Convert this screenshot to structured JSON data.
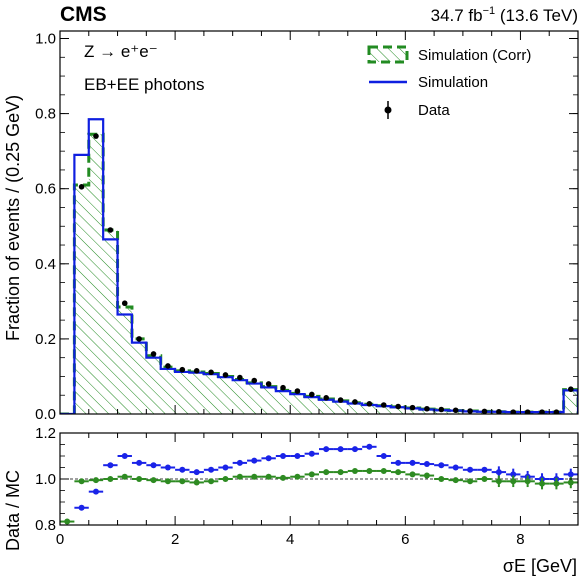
{
  "header": {
    "experiment": "CMS",
    "lumi_main": "34.7 fb",
    "lumi_sup": "−1",
    "lumi_tail": " (13.6 TeV)"
  },
  "annotations": {
    "process": "Z → e⁺e⁻",
    "region": "EB+EE photons"
  },
  "legend": {
    "corr": "Simulation (Corr)",
    "sim": "Simulation",
    "data": "Data"
  },
  "colors": {
    "corr": "#228b22",
    "sim": "#0f1fe0",
    "data": "#000000",
    "ratio_sim": "#1a23e8",
    "ratio_corr": "#2e8b22"
  },
  "chart_data": [
    {
      "type": "histogram",
      "ylabel": "Fraction of events / (0.25 GeV)",
      "xlim": [
        0,
        9
      ],
      "ylim": [
        0,
        1.02
      ],
      "yticks": [
        0.0,
        0.2,
        0.4,
        0.6,
        0.8,
        1.0
      ],
      "ytick_labels": [
        "0.0",
        "0.2",
        "0.4",
        "0.6",
        "0.8",
        "1.0"
      ],
      "bin_edges": [
        0.0,
        0.25,
        0.5,
        0.75,
        1.0,
        1.25,
        1.5,
        1.75,
        2.0,
        2.25,
        2.5,
        2.75,
        3.0,
        3.25,
        3.5,
        3.75,
        4.0,
        4.25,
        4.5,
        4.75,
        5.0,
        5.25,
        5.5,
        5.75,
        6.0,
        6.25,
        6.5,
        6.75,
        7.0,
        7.25,
        7.5,
        7.75,
        8.0,
        8.25,
        8.5,
        8.75,
        9.0
      ],
      "series": [
        {
          "name": "Simulation (Corr)",
          "style": "hatched",
          "values": [
            0.0,
            0.61,
            0.745,
            0.49,
            0.285,
            0.2,
            0.155,
            0.125,
            0.115,
            0.112,
            0.108,
            0.1,
            0.092,
            0.083,
            0.073,
            0.063,
            0.055,
            0.047,
            0.04,
            0.035,
            0.03,
            0.026,
            0.022,
            0.019,
            0.016,
            0.013,
            0.011,
            0.009,
            0.008,
            0.007,
            0.006,
            0.005,
            0.005,
            0.005,
            0.005,
            0.065
          ]
        },
        {
          "name": "Simulation",
          "style": "step",
          "values": [
            0.0,
            0.69,
            0.785,
            0.465,
            0.265,
            0.19,
            0.15,
            0.12,
            0.112,
            0.11,
            0.106,
            0.098,
            0.09,
            0.081,
            0.071,
            0.061,
            0.053,
            0.045,
            0.038,
            0.033,
            0.028,
            0.024,
            0.021,
            0.018,
            0.015,
            0.012,
            0.01,
            0.009,
            0.007,
            0.006,
            0.006,
            0.005,
            0.005,
            0.005,
            0.005,
            0.063
          ]
        },
        {
          "name": "Data",
          "style": "points",
          "values": [
            null,
            0.605,
            0.74,
            0.49,
            0.295,
            0.2,
            0.16,
            0.128,
            0.118,
            0.115,
            0.111,
            0.104,
            0.097,
            0.089,
            0.08,
            0.07,
            0.061,
            0.052,
            0.043,
            0.037,
            0.032,
            0.027,
            0.024,
            0.02,
            0.017,
            0.014,
            0.012,
            0.01,
            0.008,
            0.007,
            0.006,
            0.005,
            0.005,
            0.005,
            0.005,
            0.066
          ]
        }
      ]
    },
    {
      "type": "scatter",
      "xlabel": "σE [GeV]",
      "ylabel": "Data / MC",
      "xlim": [
        0,
        9
      ],
      "ylim": [
        0.8,
        1.2
      ],
      "xticks": [
        0,
        2,
        4,
        6,
        8
      ],
      "xtick_labels": [
        "0",
        "2",
        "4",
        "6",
        "8"
      ],
      "yticks": [
        0.8,
        1.0,
        1.2
      ],
      "ytick_labels": [
        "0.8",
        "1.0",
        "1.2"
      ],
      "reference_line": 1.0,
      "x": [
        0.125,
        0.375,
        0.625,
        0.875,
        1.125,
        1.375,
        1.625,
        1.875,
        2.125,
        2.375,
        2.625,
        2.875,
        3.125,
        3.375,
        3.625,
        3.875,
        4.125,
        4.375,
        4.625,
        4.875,
        5.125,
        5.375,
        5.625,
        5.875,
        6.125,
        6.375,
        6.625,
        6.875,
        7.125,
        7.375,
        7.625,
        7.875,
        8.125,
        8.375,
        8.625,
        8.875
      ],
      "series": [
        {
          "name": "Simulation",
          "values": [
            null,
            0.875,
            0.945,
            1.06,
            1.1,
            1.07,
            1.06,
            1.05,
            1.04,
            1.03,
            1.04,
            1.05,
            1.07,
            1.08,
            1.09,
            1.1,
            1.1,
            1.11,
            1.13,
            1.13,
            1.13,
            1.14,
            1.1,
            1.07,
            1.07,
            1.065,
            1.06,
            1.05,
            1.04,
            1.04,
            1.03,
            1.02,
            1.01,
            1.0,
            1.0,
            1.02
          ]
        },
        {
          "name": "Simulation (Corr)",
          "values": [
            0.815,
            0.99,
            0.995,
            1.0,
            1.01,
            1.0,
            0.995,
            0.99,
            0.99,
            0.985,
            0.99,
            1.0,
            1.01,
            1.01,
            1.01,
            1.005,
            1.01,
            1.02,
            1.03,
            1.03,
            1.035,
            1.035,
            1.035,
            1.03,
            1.02,
            1.015,
            1.0,
            0.995,
            0.99,
            1.0,
            0.99,
            0.99,
            0.99,
            0.98,
            0.98,
            0.985
          ]
        }
      ]
    }
  ]
}
